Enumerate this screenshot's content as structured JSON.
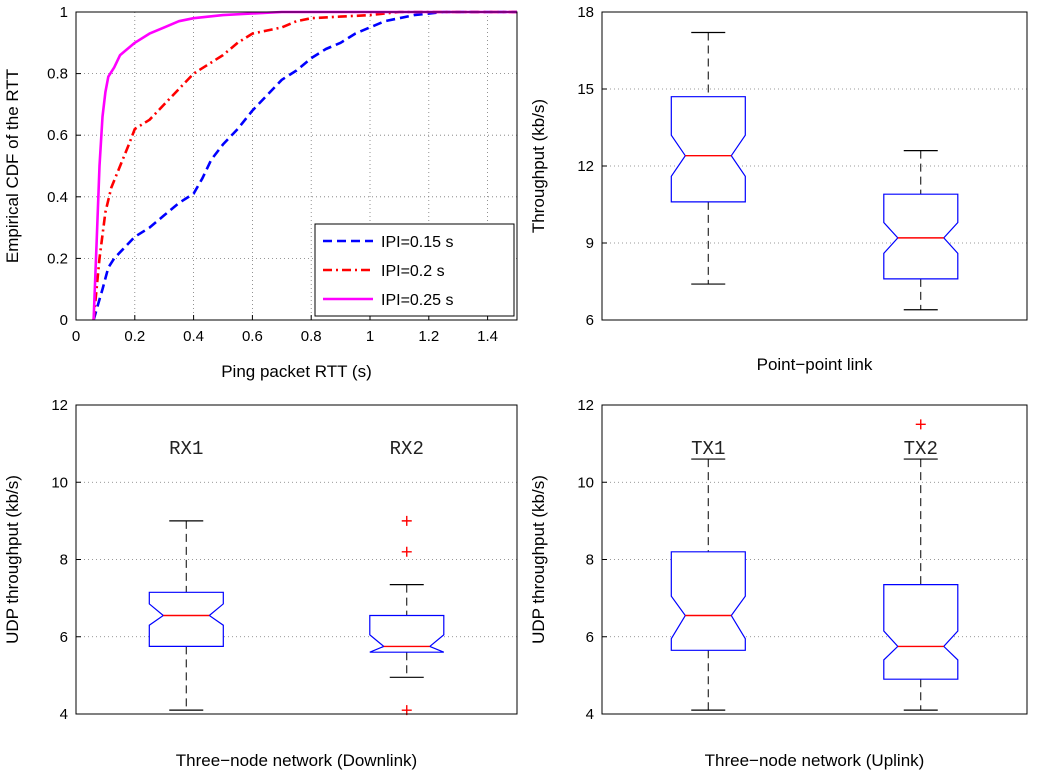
{
  "chart_data": [
    {
      "type": "line",
      "xlabel": "Ping packet RTT (s)",
      "ylabel": "Empirical CDF of the RTT",
      "xlim": [
        0,
        1.5
      ],
      "ylim": [
        0,
        1
      ],
      "xticks": [
        "0",
        "0.2",
        "0.4",
        "0.6",
        "0.8",
        "1",
        "1.2",
        "1.4"
      ],
      "yticks": [
        "0",
        "0.2",
        "0.4",
        "0.6",
        "0.8",
        "1"
      ],
      "grid": true,
      "legend_position": "bottom-right",
      "series": [
        {
          "name": "IPI=0.15 s",
          "color": "#0000ff",
          "style": "dashed",
          "x": [
            0.06,
            0.075,
            0.09,
            0.11,
            0.13,
            0.16,
            0.2,
            0.25,
            0.3,
            0.35,
            0.4,
            0.43,
            0.46,
            0.5,
            0.55,
            0.6,
            0.65,
            0.7,
            0.75,
            0.8,
            0.85,
            0.9,
            0.95,
            1.0,
            1.05,
            1.1,
            1.15,
            1.25,
            1.5
          ],
          "y": [
            0,
            0.05,
            0.1,
            0.17,
            0.2,
            0.23,
            0.27,
            0.3,
            0.34,
            0.38,
            0.41,
            0.46,
            0.52,
            0.57,
            0.62,
            0.68,
            0.73,
            0.78,
            0.81,
            0.85,
            0.88,
            0.9,
            0.93,
            0.95,
            0.97,
            0.98,
            0.99,
            1,
            1
          ]
        },
        {
          "name": "IPI=0.2 s",
          "color": "#ff0000",
          "style": "dashdot",
          "x": [
            0.06,
            0.08,
            0.1,
            0.12,
            0.15,
            0.18,
            0.2,
            0.25,
            0.3,
            0.35,
            0.4,
            0.45,
            0.5,
            0.55,
            0.6,
            0.65,
            0.7,
            0.75,
            0.8,
            0.9,
            1.0,
            1.05,
            1.1,
            1.2,
            1.5
          ],
          "y": [
            0,
            0.2,
            0.35,
            0.43,
            0.5,
            0.57,
            0.62,
            0.65,
            0.7,
            0.75,
            0.8,
            0.83,
            0.86,
            0.9,
            0.93,
            0.94,
            0.95,
            0.97,
            0.98,
            0.985,
            0.99,
            0.995,
            1,
            1,
            1
          ]
        },
        {
          "name": "IPI=0.25 s",
          "color": "#ff00ff",
          "style": "solid",
          "x": [
            0.06,
            0.07,
            0.08,
            0.09,
            0.1,
            0.11,
            0.13,
            0.15,
            0.2,
            0.25,
            0.3,
            0.35,
            0.4,
            0.5,
            0.6,
            0.7,
            1.5
          ],
          "y": [
            0,
            0.25,
            0.5,
            0.66,
            0.74,
            0.79,
            0.82,
            0.86,
            0.9,
            0.93,
            0.95,
            0.97,
            0.98,
            0.99,
            0.995,
            1,
            1
          ]
        }
      ]
    },
    {
      "type": "box",
      "xlabel": "Point−point link",
      "ylabel": "Throughput (kb/s)",
      "ylim": [
        6,
        18
      ],
      "yticks": [
        "6",
        "9",
        "12",
        "15",
        "18"
      ],
      "grid": "horizontal",
      "boxes": [
        {
          "min": 7.4,
          "q1": 10.6,
          "median": 12.4,
          "q3": 14.7,
          "max": 17.2,
          "notch_lo": 11.6,
          "notch_hi": 13.2,
          "outliers": []
        },
        {
          "min": 6.4,
          "q1": 7.6,
          "median": 9.2,
          "q3": 10.9,
          "max": 12.6,
          "notch_lo": 8.6,
          "notch_hi": 9.8,
          "outliers": []
        }
      ]
    },
    {
      "type": "box",
      "xlabel": "Three−node network (Downlink)",
      "ylabel": "UDP throughput (kb/s)",
      "ylim": [
        4,
        12
      ],
      "yticks": [
        "4",
        "6",
        "8",
        "10",
        "12"
      ],
      "grid": "horizontal",
      "box_labels": [
        "RX1",
        "RX2"
      ],
      "boxes": [
        {
          "min": 4.1,
          "q1": 5.75,
          "median": 6.55,
          "q3": 7.15,
          "max": 9.0,
          "notch_lo": 6.3,
          "notch_hi": 6.85,
          "outliers": []
        },
        {
          "min": 4.95,
          "q1": 5.6,
          "median": 5.75,
          "q3": 6.55,
          "max": 7.35,
          "notch_lo": 5.55,
          "notch_hi": 6.05,
          "outliers": [
            9.0,
            8.2,
            4.1
          ]
        }
      ]
    },
    {
      "type": "box",
      "xlabel": "Three−node network (Uplink)",
      "ylabel": "UDP throughput (kb/s)",
      "ylim": [
        4,
        12
      ],
      "yticks": [
        "4",
        "6",
        "8",
        "10",
        "12"
      ],
      "grid": "horizontal",
      "box_labels": [
        "TX1",
        "TX2"
      ],
      "boxes": [
        {
          "min": 4.1,
          "q1": 5.65,
          "median": 6.55,
          "q3": 8.2,
          "max": 10.6,
          "notch_lo": 5.95,
          "notch_hi": 7.05,
          "outliers": []
        },
        {
          "min": 4.1,
          "q1": 4.9,
          "median": 5.75,
          "q3": 7.35,
          "max": 10.6,
          "notch_lo": 5.4,
          "notch_hi": 6.15,
          "outliers": [
            11.5
          ]
        }
      ]
    }
  ]
}
